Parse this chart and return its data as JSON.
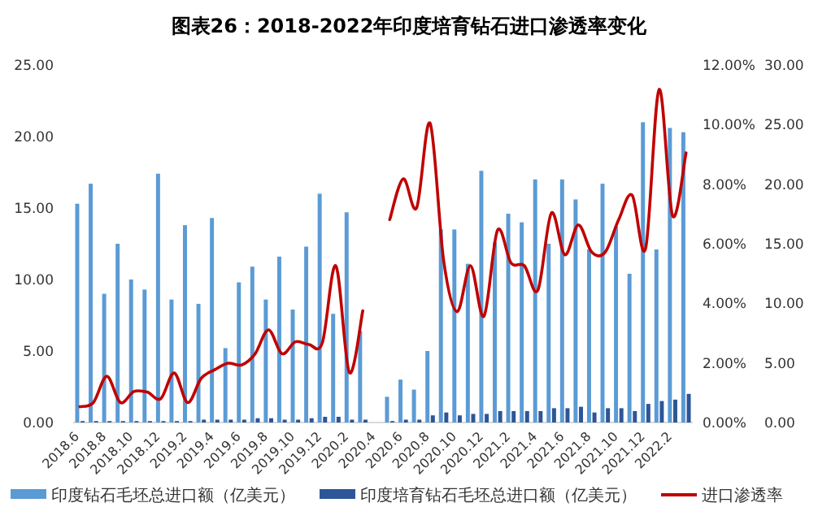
{
  "chart_data": {
    "type": "bar",
    "title": "图表26：2018-2022年印度培育钻石进口渗透率变化",
    "categories": [
      "2018.6",
      null,
      "2018.8",
      null,
      "2018.10",
      null,
      "2018.12",
      null,
      "2019.2",
      null,
      "2019.4",
      null,
      "2019.6",
      null,
      "2019.8",
      null,
      "2019.10",
      null,
      "2019.12",
      null,
      "2020.2",
      null,
      "2020.4",
      null,
      "2020.6",
      null,
      "2020.8",
      null,
      "2020.10",
      null,
      "2020.12",
      null,
      "2021.2",
      null,
      "2021.4",
      null,
      "2021.6",
      null,
      "2021.8",
      null,
      "2021.10",
      null,
      "2021.12",
      null,
      "2022.2",
      null
    ],
    "series": [
      {
        "name": "印度钻石毛坯总进口额（亿美元）",
        "color": "#5b9bd5",
        "values": [
          15.3,
          16.7,
          9.0,
          12.5,
          10.0,
          9.3,
          17.4,
          8.6,
          13.8,
          8.3,
          14.3,
          5.2,
          9.8,
          10.9,
          8.6,
          11.6,
          7.9,
          12.3,
          16.0,
          7.6,
          14.7,
          6.4,
          null,
          1.8,
          3.0,
          2.3,
          5.0,
          13.5,
          13.5,
          11.1,
          17.6,
          12.6,
          14.6,
          14.0,
          17.0,
          12.5,
          17.0,
          15.6,
          12.1,
          16.7,
          13.7,
          10.4,
          21.0,
          12.1,
          20.6,
          20.3
        ]
      },
      {
        "name": "印度培育钻石毛坯总进口额（亿美元）",
        "color": "#2e5597",
        "values": [
          0.1,
          0.1,
          0.1,
          0.1,
          0.1,
          0.1,
          0.1,
          0.1,
          0.1,
          0.2,
          0.2,
          0.2,
          0.2,
          0.3,
          0.3,
          0.2,
          0.2,
          0.3,
          0.4,
          0.4,
          0.2,
          0.2,
          null,
          0.1,
          0.2,
          0.2,
          0.5,
          0.7,
          0.5,
          0.6,
          0.6,
          0.8,
          0.8,
          0.8,
          0.8,
          1.0,
          1.0,
          1.1,
          0.7,
          1.0,
          1.0,
          0.8,
          1.3,
          1.5,
          1.6,
          2.0
        ]
      },
      {
        "name": "进口渗透率",
        "type": "line",
        "axis": "y2",
        "color": "#c00000",
        "values": [
          0.53,
          0.67,
          1.55,
          0.67,
          1.04,
          1.02,
          0.8,
          1.66,
          0.67,
          1.48,
          1.77,
          1.99,
          1.93,
          2.3,
          3.11,
          2.31,
          2.71,
          2.62,
          2.68,
          5.26,
          1.68,
          3.75,
          null,
          6.81,
          8.18,
          7.21,
          10.04,
          5.45,
          3.72,
          5.26,
          3.57,
          6.45,
          5.36,
          5.26,
          4.44,
          7.03,
          5.63,
          6.63,
          5.72,
          5.72,
          6.81,
          7.63,
          5.85,
          11.18,
          6.94,
          9.05
        ]
      }
    ],
    "ylim": [
      0,
      25
    ],
    "yticks": [
      {
        "value": 0,
        "label": "0.00"
      },
      {
        "value": 5,
        "label": "5.00"
      },
      {
        "value": 10,
        "label": "10.00"
      },
      {
        "value": 15,
        "label": "15.00"
      },
      {
        "value": 20,
        "label": "20.00"
      },
      {
        "value": 25,
        "label": "25.00"
      }
    ],
    "y2lim": [
      0,
      12
    ],
    "y2ticks": [
      {
        "value": 0,
        "label": "0.00%"
      },
      {
        "value": 2,
        "label": "2.00%"
      },
      {
        "value": 4,
        "label": "4.00%"
      },
      {
        "value": 6,
        "label": "6.00%"
      },
      {
        "value": 8,
        "label": "8.00%"
      },
      {
        "value": 10,
        "label": "10.00%"
      },
      {
        "value": 12,
        "label": "12.00%"
      }
    ],
    "y3lim": [
      0,
      30
    ],
    "y3ticks": [
      {
        "value": 0,
        "label": "0.00"
      },
      {
        "value": 5,
        "label": "5.00"
      },
      {
        "value": 10,
        "label": "10.00"
      },
      {
        "value": 15,
        "label": "15.00"
      },
      {
        "value": 20,
        "label": "20.00"
      },
      {
        "value": 25,
        "label": "25.00"
      },
      {
        "value": 30,
        "label": "30.00"
      }
    ],
    "legend": "bottom"
  }
}
